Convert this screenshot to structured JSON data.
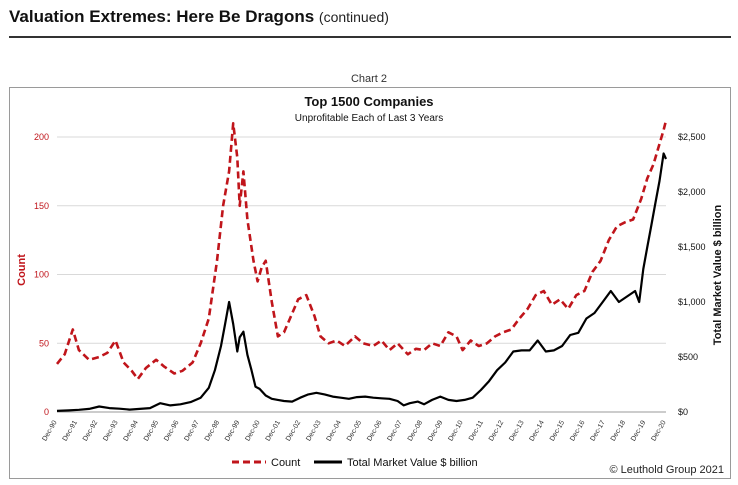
{
  "header": {
    "title": "Valuation Extremes: Here Be Dragons",
    "subtitle": "(continued)"
  },
  "chart_label": "Chart 2",
  "credit": "© Leuthold Group 2021",
  "chart_data": {
    "type": "line",
    "title": "Top 1500 Companies",
    "subtitle": "Unprofitable Each of Last 3 Years",
    "ylabel_left": "Count",
    "ylabel_right": "Total Market Value $ billion",
    "ylim_left": [
      0,
      200
    ],
    "yticks_left": [
      "0",
      "50",
      "100",
      "150",
      "200"
    ],
    "ylim_right": [
      0,
      2500
    ],
    "yticks_right": [
      "$0",
      "$500",
      "$1,000",
      "$1,500",
      "$2,000",
      "$2,500"
    ],
    "xlim": [
      1990.92,
      2020.92
    ],
    "xticks": [
      "Dec-90",
      "Dec-91",
      "Dec-92",
      "Dec-93",
      "Dec-94",
      "Dec-95",
      "Dec-96",
      "Dec-97",
      "Dec-98",
      "Dec-99",
      "Dec-00",
      "Dec-01",
      "Dec-02",
      "Dec-03",
      "Dec-04",
      "Dec-05",
      "Dec-06",
      "Dec-07",
      "Dec-08",
      "Dec-09",
      "Dec-10",
      "Dec-11",
      "Dec-12",
      "Dec-13",
      "Dec-14",
      "Dec-15",
      "Dec-16",
      "Dec-17",
      "Dec-18",
      "Dec-19",
      "Dec-20"
    ],
    "grid": "horizontal",
    "legend_position": "bottom",
    "colors": {
      "count": "#c0151b",
      "market_value": "#000000"
    },
    "series": [
      {
        "name": "Count",
        "axis": "left",
        "style": "dashed",
        "x": [
          1990.92,
          1991.3,
          1991.7,
          1992.0,
          1992.5,
          1993.0,
          1993.4,
          1993.8,
          1994.2,
          1994.6,
          1994.9,
          1995.3,
          1995.8,
          1996.2,
          1996.7,
          1997.1,
          1997.6,
          1998.0,
          1998.4,
          1998.8,
          1999.1,
          1999.4,
          1999.6,
          1999.8,
          1999.92,
          2000.1,
          2000.3,
          2000.6,
          2000.8,
          2001.0,
          2001.2,
          2001.5,
          2001.8,
          2002.1,
          2002.4,
          2002.8,
          2003.2,
          2003.6,
          2003.9,
          2004.3,
          2004.7,
          2005.1,
          2005.6,
          2006.0,
          2006.5,
          2006.9,
          2007.3,
          2007.7,
          2008.2,
          2008.6,
          2009.0,
          2009.4,
          2009.8,
          2010.2,
          2010.6,
          2010.9,
          2011.3,
          2011.7,
          2012.1,
          2012.5,
          2012.9,
          2013.3,
          2013.7,
          2014.1,
          2014.5,
          2014.9,
          2015.3,
          2015.7,
          2016.1,
          2016.5,
          2016.9,
          2017.3,
          2017.7,
          2018.1,
          2018.5,
          2018.9,
          2019.3,
          2019.7,
          2020.0,
          2020.3,
          2020.6,
          2020.8,
          2020.92
        ],
        "values": [
          35,
          42,
          60,
          45,
          38,
          40,
          43,
          52,
          36,
          30,
          24,
          32,
          38,
          33,
          28,
          30,
          36,
          50,
          68,
          110,
          150,
          175,
          210,
          185,
          150,
          175,
          140,
          110,
          95,
          105,
          110,
          80,
          55,
          58,
          68,
          82,
          85,
          70,
          55,
          50,
          52,
          48,
          55,
          50,
          48,
          52,
          45,
          50,
          42,
          46,
          45,
          50,
          48,
          58,
          55,
          45,
          52,
          48,
          50,
          55,
          58,
          60,
          68,
          75,
          85,
          88,
          78,
          82,
          75,
          85,
          88,
          102,
          110,
          125,
          135,
          138,
          140,
          155,
          170,
          180,
          195,
          205,
          212
        ]
      },
      {
        "name": "Total Market Value $ billion",
        "axis": "right",
        "style": "solid",
        "x": [
          1990.92,
          1991.5,
          1992.0,
          1992.5,
          1993.0,
          1993.5,
          1994.0,
          1994.5,
          1995.0,
          1995.5,
          1996.0,
          1996.5,
          1997.0,
          1997.5,
          1998.0,
          1998.4,
          1998.7,
          1999.0,
          1999.2,
          1999.4,
          1999.6,
          1999.8,
          1999.92,
          2000.1,
          2000.3,
          2000.5,
          2000.7,
          2000.9,
          2001.2,
          2001.5,
          2001.8,
          2002.1,
          2002.5,
          2002.9,
          2003.3,
          2003.7,
          2004.1,
          2004.5,
          2004.9,
          2005.3,
          2005.7,
          2006.1,
          2006.5,
          2006.9,
          2007.3,
          2007.7,
          2008.0,
          2008.3,
          2008.7,
          2009.0,
          2009.4,
          2009.8,
          2010.2,
          2010.6,
          2011.0,
          2011.4,
          2011.8,
          2012.2,
          2012.6,
          2013.0,
          2013.4,
          2013.8,
          2014.2,
          2014.6,
          2015.0,
          2015.4,
          2015.8,
          2016.2,
          2016.6,
          2017.0,
          2017.4,
          2017.8,
          2018.2,
          2018.6,
          2019.0,
          2019.4,
          2019.6,
          2019.8,
          2020.0,
          2020.2,
          2020.4,
          2020.6,
          2020.8,
          2020.92
        ],
        "values": [
          10,
          15,
          20,
          28,
          50,
          35,
          30,
          22,
          28,
          35,
          80,
          60,
          70,
          90,
          130,
          220,
          380,
          600,
          800,
          1000,
          800,
          550,
          680,
          730,
          520,
          380,
          230,
          210,
          150,
          120,
          110,
          100,
          95,
          130,
          160,
          175,
          160,
          140,
          130,
          120,
          135,
          140,
          130,
          125,
          120,
          100,
          60,
          80,
          95,
          70,
          110,
          140,
          110,
          100,
          110,
          130,
          200,
          280,
          380,
          450,
          550,
          560,
          560,
          650,
          550,
          560,
          600,
          700,
          720,
          850,
          900,
          1000,
          1100,
          1000,
          1050,
          1100,
          1000,
          1300,
          1500,
          1700,
          1900,
          2100,
          2350,
          2300
        ]
      }
    ]
  }
}
